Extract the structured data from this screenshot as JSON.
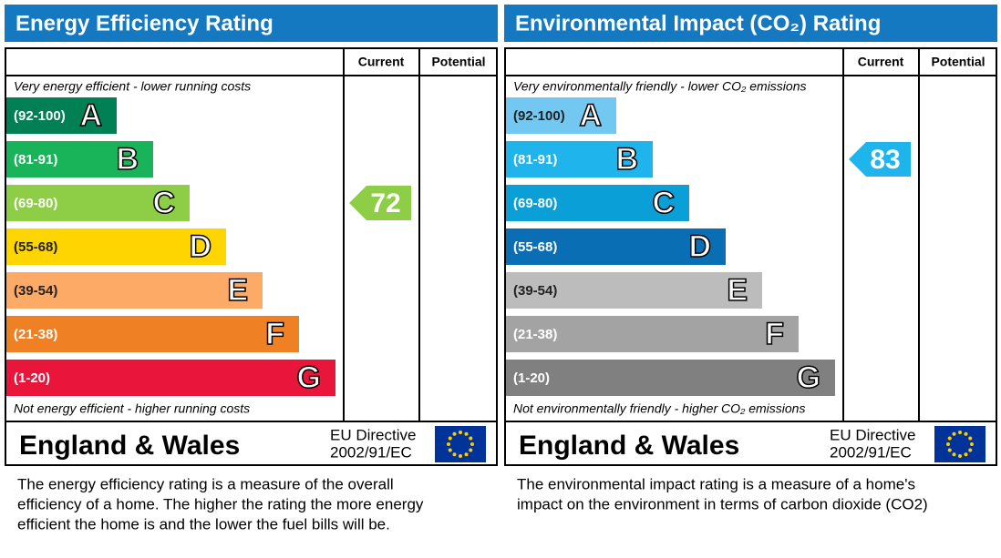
{
  "panels": [
    {
      "title": "Energy Efficiency Rating",
      "columns": [
        "Current",
        "Potential"
      ],
      "top_note": "Very energy efficient - lower running costs",
      "bottom_note": "Not energy efficient - higher running costs",
      "bands": [
        {
          "range": "(92-100)",
          "letter": "A",
          "color": "#008054"
        },
        {
          "range": "(81-91)",
          "letter": "B",
          "color": "#19b459"
        },
        {
          "range": "(69-80)",
          "letter": "C",
          "color": "#8dce46"
        },
        {
          "range": "(55-68)",
          "letter": "D",
          "color": "#ffd500"
        },
        {
          "range": "(39-54)",
          "letter": "E",
          "color": "#fcaa65"
        },
        {
          "range": "(21-38)",
          "letter": "F",
          "color": "#ef8023"
        },
        {
          "range": "(1-20)",
          "letter": "G",
          "color": "#e9153b"
        }
      ],
      "current": 72,
      "region": "England & Wales",
      "directive": [
        "EU Directive",
        "2002/91/EC"
      ],
      "description": [
        "The energy efficiency rating is a measure of the overall",
        "efficiency of a home.  The higher the rating the more energy",
        "efficient the home is and the lower the fuel bills will be."
      ]
    },
    {
      "title": "Environmental Impact (CO₂) Rating",
      "columns": [
        "Current",
        "Potential"
      ],
      "top_note": "Very environmentally friendly - lower CO₂ emissions",
      "bottom_note": "Not environmentally friendly - higher CO₂ emissions",
      "bands": [
        {
          "range": "(92-100)",
          "letter": "A",
          "color": "#73c8f2"
        },
        {
          "range": "(81-91)",
          "letter": "B",
          "color": "#1fb5ec"
        },
        {
          "range": "(69-80)",
          "letter": "C",
          "color": "#0b9fd8"
        },
        {
          "range": "(55-68)",
          "letter": "D",
          "color": "#0a6eb5"
        },
        {
          "range": "(39-54)",
          "letter": "E",
          "color": "#bcbcbc"
        },
        {
          "range": "(21-38)",
          "letter": "F",
          "color": "#a3a3a3"
        },
        {
          "range": "(1-20)",
          "letter": "G",
          "color": "#808080"
        }
      ],
      "current": 83,
      "region": "England & Wales",
      "directive": [
        "EU Directive",
        "2002/91/EC"
      ],
      "description": [
        "The environmental impact rating is a measure of a home's",
        "impact on the environment in terms of carbon dioxide (CO2)"
      ]
    }
  ]
}
